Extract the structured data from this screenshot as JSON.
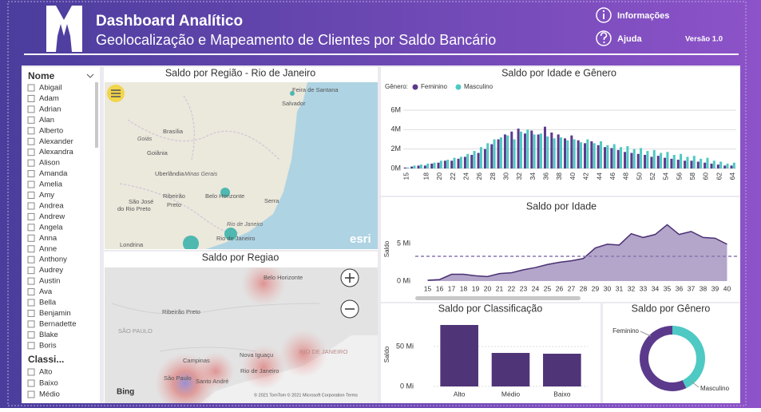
{
  "header": {
    "title": "Dashboard Analítico",
    "subtitle": "Geolocalização e Mapeamento de Clientes por Saldo Bancário",
    "info": "Informações",
    "help": "Ajuda",
    "version": "Versão 1.0"
  },
  "slicers": [
    {
      "title": "Nome",
      "items": [
        "Abigail",
        "Adam",
        "Adrian",
        "Alan",
        "Alberto",
        "Alexander",
        "Alexandra",
        "Alison",
        "Amanda",
        "Amelia",
        "Amy",
        "Andrea",
        "Andrew",
        "Angela",
        "Anna",
        "Anne",
        "Anthony",
        "Audrey",
        "Austin",
        "Ava",
        "Bella",
        "Benjamin",
        "Bernadette",
        "Blake",
        "Boris"
      ]
    },
    {
      "title": "Classi...",
      "items": [
        "Alto",
        "Baixo",
        "Médio"
      ]
    }
  ],
  "maps": [
    {
      "title": "Saldo por Região - Rio de Janeiro",
      "labels": [
        "Feira de Santana",
        "Salvador",
        "Brasília",
        "Goiás",
        "Goiânia",
        "Uberlândia",
        "Minas Gerais",
        "Belo Horizonte",
        "São José",
        "do Rio Preto",
        "Ribeirão",
        "Preto",
        "Serra",
        "Rio de Janeiro",
        "Rio de Janeiro",
        "Londrina",
        "esri"
      ]
    },
    {
      "title": "Saldo por Regiao",
      "labels": [
        "Belo Horizonte",
        "Ribeirão Preto",
        "SÃO PAULO",
        "RIO DE JANEIRO",
        "Nova Iguaçu",
        "Rio de Janeiro",
        "Campinas",
        "São Paulo",
        "Santo André",
        "Bing"
      ],
      "credit": "© 2021 TomTom © 2021 Microsoft Corporation Terms"
    }
  ],
  "chart_data": [
    {
      "type": "grouped-bar",
      "title": "Saldo por Idade e Gênero",
      "legend_title": "Gênero:",
      "categories": [
        15,
        null,
        null,
        18,
        null,
        20,
        null,
        22,
        null,
        24,
        null,
        26,
        null,
        28,
        null,
        30,
        null,
        32,
        null,
        34,
        null,
        36,
        null,
        38,
        null,
        40,
        null,
        42,
        null,
        44,
        null,
        46,
        null,
        48,
        null,
        50,
        null,
        52,
        null,
        54,
        null,
        56,
        null,
        58,
        null,
        60,
        null,
        62,
        null,
        64
      ],
      "series": [
        {
          "name": "Feminino",
          "color": "#5b3a8c",
          "values": [
            0.1,
            0.2,
            0.3,
            0.3,
            0.5,
            0.6,
            0.8,
            0.8,
            1.0,
            1.2,
            1.4,
            1.6,
            2.0,
            2.5,
            3.0,
            3.5,
            3.8,
            4.1,
            3.6,
            3.9,
            3.5,
            4.3,
            3.7,
            3.5,
            3.1,
            3.4,
            2.9,
            2.6,
            2.8,
            2.4,
            2.2,
            2.1,
            1.9,
            1.7,
            1.6,
            1.5,
            1.4,
            1.2,
            1.3,
            1.1,
            1.0,
            0.9,
            0.8,
            0.8,
            0.7,
            0.6,
            0.5,
            0.4,
            0.3,
            0.3
          ]
        },
        {
          "name": "Masculino",
          "color": "#4fc9c4",
          "values": [
            0.1,
            0.3,
            0.4,
            0.5,
            0.6,
            0.8,
            0.9,
            1.1,
            1.2,
            1.5,
            1.8,
            2.2,
            2.6,
            3.0,
            3.2,
            3.4,
            3.0,
            3.8,
            4.0,
            3.5,
            3.6,
            3.3,
            3.1,
            3.2,
            2.9,
            3.0,
            2.7,
            3.0,
            2.6,
            2.8,
            2.4,
            2.5,
            2.2,
            2.3,
            2.0,
            2.1,
            1.8,
            1.9,
            1.6,
            1.7,
            1.4,
            1.5,
            1.2,
            1.3,
            1.0,
            1.1,
            0.8,
            0.7,
            0.5,
            0.6
          ]
        }
      ],
      "ylim": [
        0,
        6
      ],
      "yticks": [
        {
          "value": 0,
          "label": "0M"
        },
        {
          "value": 2,
          "label": "2M"
        },
        {
          "value": 4,
          "label": "4M"
        },
        {
          "value": 6,
          "label": "6M"
        }
      ],
      "grid": true
    },
    {
      "type": "area",
      "title": "Saldo por Idade",
      "y_label": "Saldo",
      "color": "#9a88b8",
      "line_color": "#4a2f73",
      "categories": [
        15,
        16,
        17,
        18,
        19,
        20,
        21,
        22,
        23,
        24,
        25,
        26,
        27,
        28,
        29,
        30,
        31,
        32,
        33,
        34,
        35,
        36,
        37,
        38,
        39,
        40
      ],
      "values": [
        0.1,
        0.2,
        0.9,
        0.9,
        0.7,
        0.6,
        1.0,
        1.1,
        1.5,
        1.8,
        2.2,
        2.5,
        2.7,
        3.0,
        4.4,
        4.9,
        4.8,
        6.3,
        5.8,
        6.2,
        7.5,
        6.2,
        6.6,
        5.8,
        5.7,
        4.9
      ],
      "reference_line": 3.3,
      "ylim": [
        0,
        8.5
      ],
      "yticks": [
        {
          "value": 0,
          "label": "0 Mi"
        },
        {
          "value": 5,
          "label": "5 Mi"
        }
      ]
    },
    {
      "type": "bar",
      "title": "Saldo por Classificação",
      "y_label": "Saldo",
      "color": "#4f3578",
      "categories": [
        "Alto",
        "Médio",
        "Baixo"
      ],
      "values": [
        77,
        42,
        41
      ],
      "ylim": [
        0,
        80
      ],
      "yticks": [
        {
          "value": 0,
          "label": "0 Mi"
        },
        {
          "value": 50,
          "label": "50 Mi"
        }
      ],
      "grid": true
    },
    {
      "type": "donut",
      "title": "Saldo por Gênero",
      "categories": [
        "Feminino",
        "Masculino"
      ],
      "values": [
        57,
        43
      ],
      "colors": [
        "#5b3a8c",
        "#4fc9c4"
      ]
    }
  ]
}
